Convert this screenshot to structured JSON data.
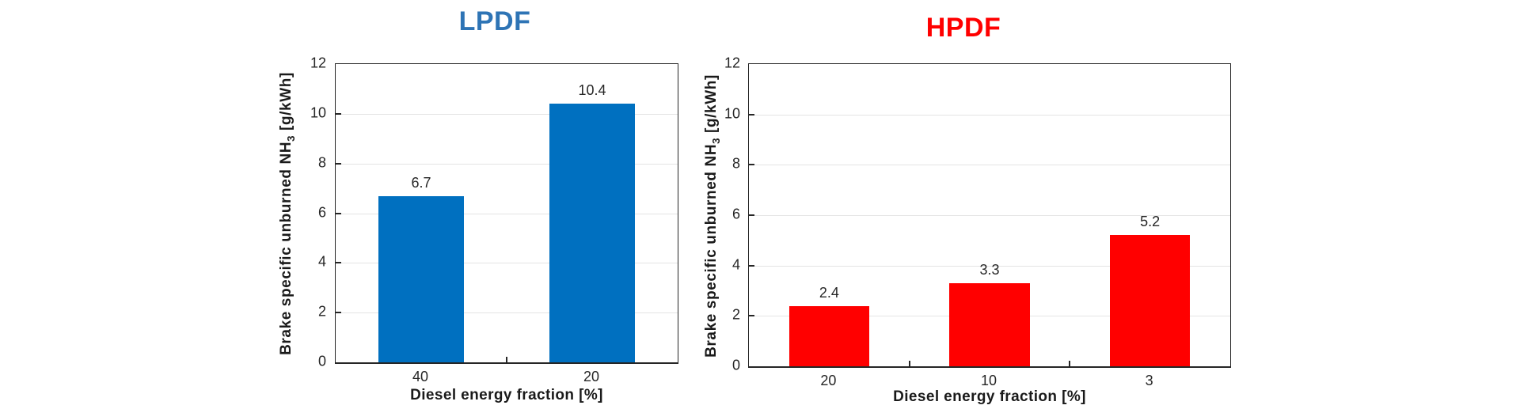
{
  "page": {
    "background": "#FFFFFF"
  },
  "style": {
    "axis_color": "#262626",
    "grid_color": "#E4E4E4",
    "text_color": "#262626"
  },
  "chart_data": [
    {
      "type": "bar",
      "title": "LPDF",
      "title_color": "#2E74B5",
      "bar_color": "#0070C0",
      "categories": [
        "40",
        "20"
      ],
      "values": [
        6.7,
        10.4
      ],
      "value_labels": [
        "6.7",
        "10.4"
      ],
      "xlabel": "Diesel energy fraction [%]",
      "ylabel": "Brake specific unburned NH3 [g/kWh]",
      "ylabel_parts": {
        "prefix": "Brake specific unburned NH",
        "sub": "3",
        "suffix": " [g/kWh]"
      },
      "ylim": [
        0,
        12
      ],
      "yticks": [
        0,
        2,
        4,
        6,
        8,
        10,
        12
      ],
      "grid": true,
      "legend": "none"
    },
    {
      "type": "bar",
      "title": "HPDF",
      "title_color": "#FF0000",
      "bar_color": "#FF0000",
      "categories": [
        "20",
        "10",
        "3"
      ],
      "values": [
        2.4,
        3.3,
        5.2
      ],
      "value_labels": [
        "2.4",
        "3.3",
        "5.2"
      ],
      "xlabel": "Diesel energy fraction [%]",
      "ylabel": "Brake specific unburned NH3 [g/kWh]",
      "ylabel_parts": {
        "prefix": "Brake specific unburned NH",
        "sub": "3",
        "suffix": " [g/kWh]"
      },
      "ylim": [
        0,
        12
      ],
      "yticks": [
        0,
        2,
        4,
        6,
        8,
        10,
        12
      ],
      "grid": true,
      "legend": "none"
    }
  ]
}
